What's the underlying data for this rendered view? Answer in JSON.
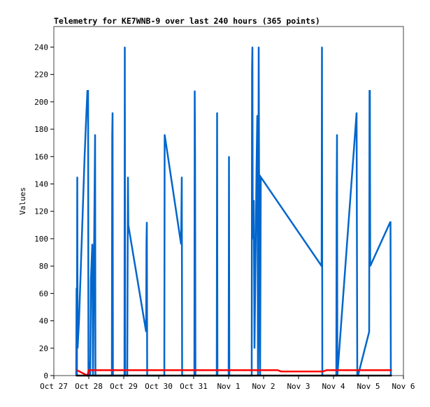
{
  "chart_data": {
    "type": "line",
    "title": "Telemetry for KE7WNB-9 over last 240 hours (365 points)",
    "xlabel": "",
    "ylabel": "Values",
    "x_units": "days since Oct 27 00:00",
    "xlim": [
      0,
      10
    ],
    "ylim": [
      0,
      255
    ],
    "x_ticks": [
      "Oct 27",
      "Oct 28",
      "Oct 29",
      "Oct 30",
      "Oct 31",
      "Nov 1",
      "Nov 2",
      "Nov 3",
      "Nov 4",
      "Nov 5",
      "Nov 6"
    ],
    "y_ticks": [
      0,
      20,
      40,
      60,
      80,
      100,
      120,
      140,
      160,
      180,
      200,
      220,
      240
    ],
    "series": [
      {
        "name": "series-blue",
        "color": "#0066cc",
        "points": [
          [
            0.64,
            0
          ],
          [
            0.65,
            64
          ],
          [
            0.66,
            0
          ],
          [
            0.67,
            145
          ],
          [
            0.68,
            20
          ],
          [
            0.72,
            40
          ],
          [
            0.76,
            70
          ],
          [
            0.8,
            100
          ],
          [
            0.84,
            130
          ],
          [
            0.88,
            160
          ],
          [
            0.92,
            185
          ],
          [
            0.96,
            208
          ],
          [
            0.98,
            208
          ],
          [
            0.99,
            0
          ],
          [
            1.02,
            10
          ],
          [
            1.04,
            0
          ],
          [
            1.06,
            70
          ],
          [
            1.1,
            96
          ],
          [
            1.12,
            0
          ],
          [
            1.18,
            176
          ],
          [
            1.19,
            0
          ],
          [
            1.66,
            0
          ],
          [
            1.67,
            176
          ],
          [
            1.68,
            192
          ],
          [
            1.69,
            0
          ],
          [
            2.02,
            0
          ],
          [
            2.03,
            240
          ],
          [
            2.04,
            0
          ],
          [
            2.1,
            0
          ],
          [
            2.11,
            80
          ],
          [
            2.12,
            145
          ],
          [
            2.13,
            110
          ],
          [
            2.64,
            32
          ],
          [
            2.65,
            97
          ],
          [
            2.66,
            112
          ],
          [
            2.67,
            0
          ],
          [
            3.16,
            0
          ],
          [
            3.17,
            176
          ],
          [
            3.64,
            96
          ],
          [
            3.66,
            145
          ],
          [
            3.67,
            0
          ],
          [
            4.02,
            0
          ],
          [
            4.03,
            208
          ],
          [
            4.04,
            160
          ],
          [
            4.05,
            0
          ],
          [
            4.66,
            0
          ],
          [
            4.67,
            192
          ],
          [
            4.68,
            0
          ],
          [
            5.0,
            0
          ],
          [
            5.01,
            160
          ],
          [
            5.02,
            0
          ],
          [
            5.66,
            0
          ],
          [
            5.67,
            224
          ],
          [
            5.68,
            240
          ],
          [
            5.69,
            100
          ],
          [
            5.72,
            128
          ],
          [
            5.74,
            20
          ],
          [
            5.8,
            155
          ],
          [
            5.82,
            190
          ],
          [
            5.84,
            0
          ],
          [
            5.86,
            240
          ],
          [
            5.88,
            64
          ],
          [
            5.9,
            0
          ],
          [
            5.92,
            145
          ],
          [
            7.66,
            80
          ],
          [
            7.67,
            240
          ],
          [
            7.68,
            0
          ],
          [
            8.08,
            0
          ],
          [
            8.09,
            128
          ],
          [
            8.1,
            176
          ],
          [
            8.11,
            0
          ],
          [
            8.66,
            192
          ],
          [
            8.67,
            96
          ],
          [
            8.68,
            0
          ],
          [
            8.7,
            0
          ],
          [
            9.02,
            32
          ],
          [
            9.03,
            208
          ],
          [
            9.04,
            208
          ],
          [
            9.05,
            80
          ],
          [
            9.62,
            112
          ],
          [
            9.63,
            112
          ],
          [
            9.64,
            0
          ]
        ]
      },
      {
        "name": "series-red",
        "color": "#ff0000",
        "points": [
          [
            0.66,
            4
          ],
          [
            0.96,
            0
          ],
          [
            1.0,
            4
          ],
          [
            6.4,
            4
          ],
          [
            6.5,
            3
          ],
          [
            7.7,
            3
          ],
          [
            7.8,
            4
          ],
          [
            9.66,
            4
          ]
        ]
      },
      {
        "name": "series-black",
        "color": "#000000",
        "points": [
          [
            0.64,
            0
          ],
          [
            9.66,
            0
          ]
        ]
      }
    ]
  }
}
